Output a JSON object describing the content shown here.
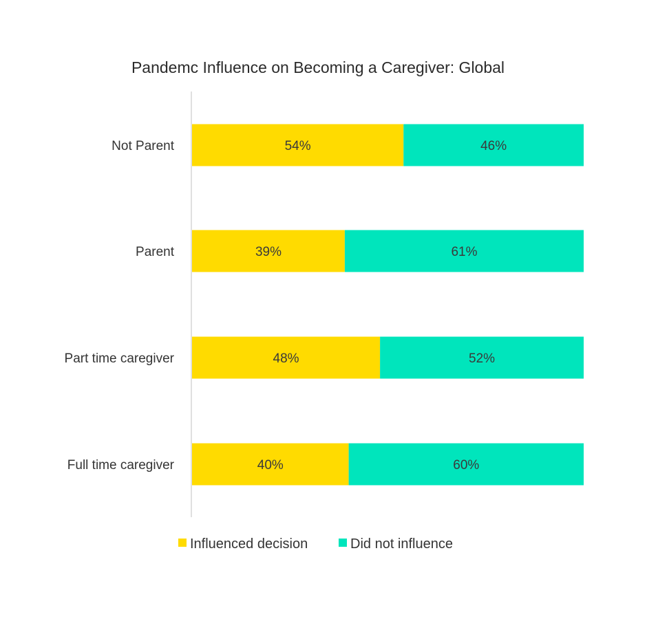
{
  "chart_data": {
    "type": "bar",
    "orientation": "horizontal",
    "stacked": true,
    "title": "Pandemc Influence on Becoming a Caregiver: Global",
    "categories": [
      "Not Parent",
      "Parent",
      "Part time caregiver",
      "Full time caregiver"
    ],
    "series": [
      {
        "name": "Influenced decision",
        "color": "#FFDB00",
        "values": [
          54,
          39,
          48,
          40
        ],
        "labels": [
          "54%",
          "39%",
          "48%",
          "40%"
        ]
      },
      {
        "name": "Did not influence",
        "color": "#00E5BC",
        "values": [
          46,
          61,
          52,
          60
        ],
        "labels": [
          "46%",
          "61%",
          "52%",
          "60%"
        ]
      }
    ],
    "xlim": [
      0,
      100
    ],
    "value_unit": "%",
    "grid": false,
    "legend_position": "bottom"
  }
}
